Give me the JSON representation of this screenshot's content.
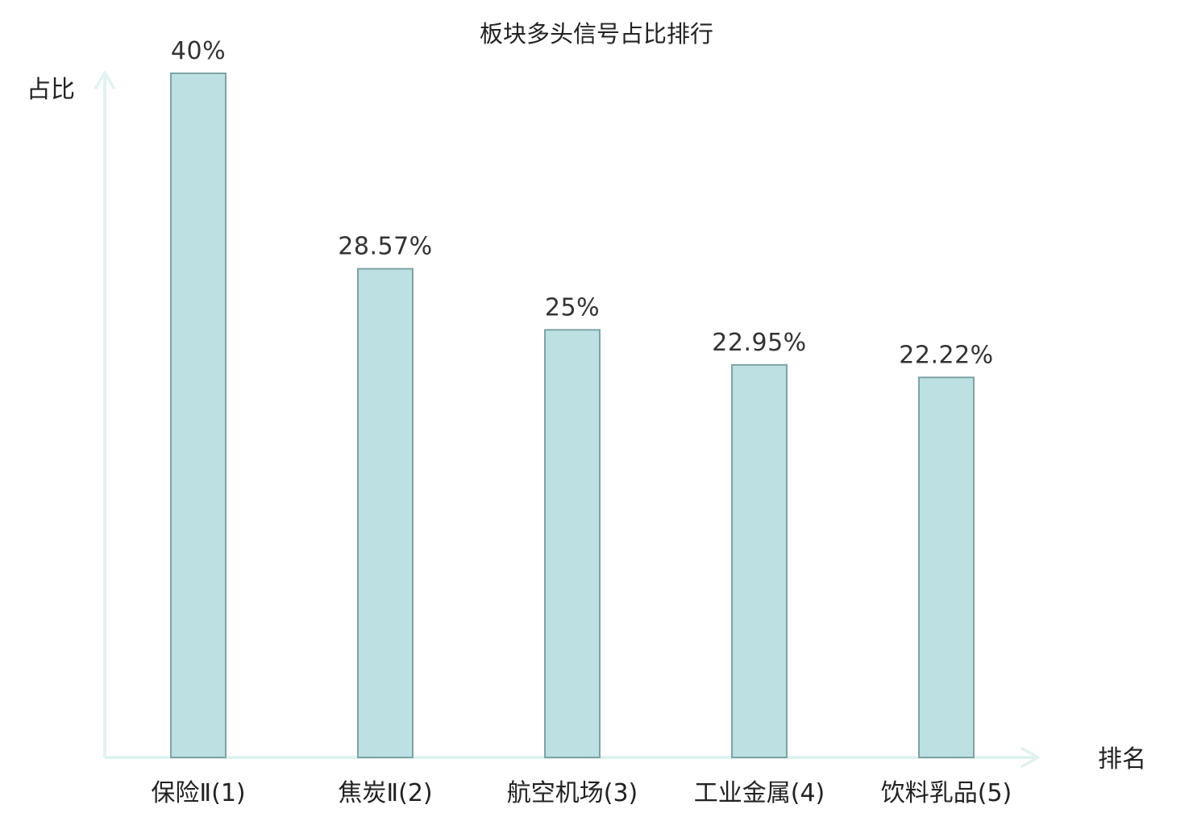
{
  "chart_data": {
    "type": "bar",
    "title": "板块多头信号占比排行",
    "xlabel": "排名",
    "ylabel": "占比",
    "categories": [
      "保险Ⅱ(1)",
      "焦炭Ⅱ(2)",
      "航空机场(3)",
      "工业金属(4)",
      "饮料乳品(5)"
    ],
    "values": [
      40,
      28.57,
      25,
      22.95,
      22.22
    ],
    "value_labels": [
      "40%",
      "28.57%",
      "25%",
      "22.95%",
      "22.22%"
    ],
    "ylim": [
      0,
      40
    ],
    "grid": false,
    "highlight_index": 4,
    "colors": {
      "bar_fill": "#bde0e2",
      "bar_stroke": "#7fa3a5",
      "axis": "#e0f2f0",
      "text": "#222222",
      "highlight_text": "#e01414"
    }
  }
}
